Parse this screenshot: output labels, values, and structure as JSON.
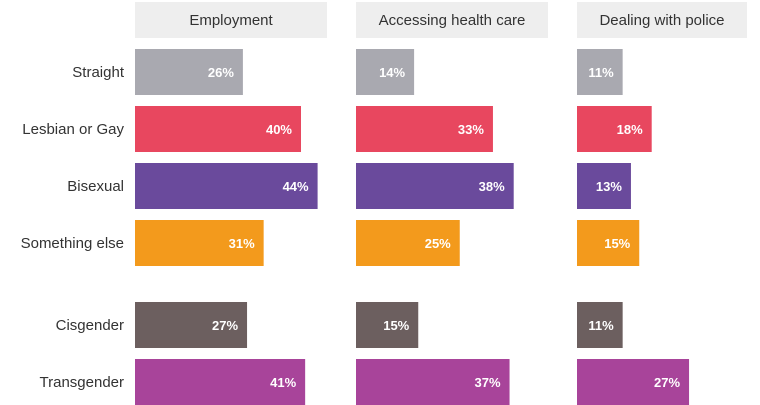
{
  "chart_data": {
    "type": "bar",
    "orientation": "horizontal",
    "panels": [
      "Employment",
      "Accessing health care",
      "Dealing with police"
    ],
    "categories": [
      "Straight",
      "Lesbian or Gay",
      "Bisexual",
      "Something else",
      "Cisgender",
      "Transgender"
    ],
    "colors": [
      "#a9a9b0",
      "#e8475f",
      "#6a4a9c",
      "#f39a1c",
      "#6c5f5f",
      "#a8449a"
    ],
    "series": [
      {
        "values": [
          26,
          40,
          44,
          31,
          27,
          41
        ]
      },
      {
        "values": [
          14,
          33,
          38,
          25,
          15,
          37
        ]
      },
      {
        "values": [
          11,
          18,
          13,
          15,
          11,
          27
        ]
      }
    ],
    "value_suffix": "%",
    "grid": false,
    "legend": "none"
  }
}
